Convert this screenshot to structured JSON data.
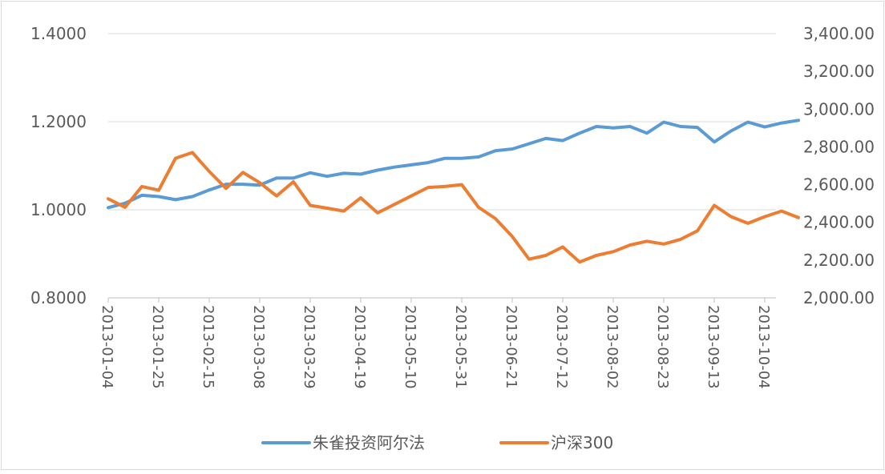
{
  "chart_data": {
    "type": "line",
    "title": "",
    "x_ticks": [
      "2013-01-04",
      "2013-01-25",
      "2013-02-15",
      "2013-03-08",
      "2013-03-29",
      "2013-04-19",
      "2013-05-10",
      "2013-05-31",
      "2013-06-21",
      "2013-07-12",
      "2013-08-02",
      "2013-08-23",
      "2013-09-13",
      "2013-10-04"
    ],
    "y_left": {
      "lim": [
        0.8,
        1.4
      ],
      "ticks": [
        0.8,
        1.0,
        1.2,
        1.4
      ],
      "tick_labels": [
        "0.8000",
        "1.0000",
        "1.2000",
        "1.4000"
      ]
    },
    "y_right": {
      "lim": [
        2000,
        3400
      ],
      "ticks": [
        2000,
        2200,
        2400,
        2600,
        2800,
        3000,
        3200,
        3400
      ],
      "tick_labels": [
        "2,000.00",
        "2,200.00",
        "2,400.00",
        "2,600.00",
        "2,800.00",
        "3,000.00",
        "3,200.00",
        "3,400.00"
      ]
    },
    "grid": true,
    "legend": "bottom",
    "colors": {
      "series0": "#5B9BD5",
      "series1": "#ED7D31",
      "grid": "#D9D9D9",
      "axis": "#BFBFBF"
    },
    "series": [
      {
        "name": "朱雀投资阿尔法",
        "axis": "left",
        "x": [
          "2013-01-04",
          "2013-01-11",
          "2013-01-18",
          "2013-01-25",
          "2013-02-01",
          "2013-02-08",
          "2013-02-15",
          "2013-02-22",
          "2013-03-01",
          "2013-03-08",
          "2013-03-15",
          "2013-03-22",
          "2013-03-29",
          "2013-04-05",
          "2013-04-12",
          "2013-04-19",
          "2013-04-26",
          "2013-05-03",
          "2013-05-10",
          "2013-05-17",
          "2013-05-24",
          "2013-05-31",
          "2013-06-07",
          "2013-06-14",
          "2013-06-21",
          "2013-06-28",
          "2013-07-05",
          "2013-07-12",
          "2013-07-19",
          "2013-07-26",
          "2013-08-02",
          "2013-08-09",
          "2013-08-16",
          "2013-08-23",
          "2013-08-30",
          "2013-09-06",
          "2013-09-13",
          "2013-09-20",
          "2013-09-27",
          "2013-10-04",
          "2013-10-11",
          "2013-10-18"
        ],
        "values": [
          1.005,
          1.015,
          1.033,
          1.03,
          1.023,
          1.03,
          1.045,
          1.058,
          1.058,
          1.056,
          1.072,
          1.072,
          1.084,
          1.076,
          1.083,
          1.081,
          1.09,
          1.097,
          1.102,
          1.107,
          1.117,
          1.117,
          1.12,
          1.134,
          1.138,
          1.15,
          1.162,
          1.157,
          1.174,
          1.189,
          1.186,
          1.189,
          1.174,
          1.199,
          1.189,
          1.187,
          1.154,
          1.179,
          1.199,
          1.188,
          1.197,
          1.203
        ]
      },
      {
        "name": "沪深300",
        "axis": "right",
        "x": [
          "2013-01-04",
          "2013-01-11",
          "2013-01-18",
          "2013-01-25",
          "2013-02-01",
          "2013-02-08",
          "2013-02-15",
          "2013-02-22",
          "2013-03-01",
          "2013-03-08",
          "2013-03-15",
          "2013-03-22",
          "2013-03-29",
          "2013-04-05",
          "2013-04-12",
          "2013-04-19",
          "2013-04-26",
          "2013-05-03",
          "2013-05-10",
          "2013-05-17",
          "2013-05-24",
          "2013-05-31",
          "2013-06-07",
          "2013-06-14",
          "2013-06-21",
          "2013-06-28",
          "2013-07-05",
          "2013-07-12",
          "2013-07-19",
          "2013-07-26",
          "2013-08-02",
          "2013-08-09",
          "2013-08-16",
          "2013-08-23",
          "2013-08-30",
          "2013-09-06",
          "2013-09-13",
          "2013-09-20",
          "2013-09-27",
          "2013-10-04",
          "2013-10-11",
          "2013-10-18"
        ],
        "values": [
          2525,
          2480,
          2590,
          2570,
          2740,
          2770,
          2670,
          2580,
          2665,
          2610,
          2540,
          2615,
          2490,
          2475,
          2460,
          2530,
          2450,
          2495,
          2540,
          2585,
          2590,
          2600,
          2480,
          2420,
          2325,
          2205,
          2225,
          2270,
          2190,
          2225,
          2245,
          2280,
          2300,
          2285,
          2310,
          2355,
          2490,
          2430,
          2395,
          2430,
          2460,
          2425
        ]
      }
    ]
  }
}
